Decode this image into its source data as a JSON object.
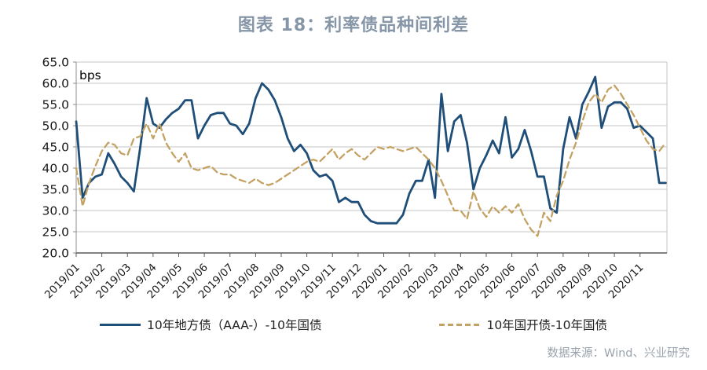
{
  "title": "图表 18：利率债品种间利差",
  "source": "数据来源：Wind、兴业研究",
  "colors": {
    "title_text": "#8696A7",
    "source_text": "#9AA3AD",
    "axis_text": "#1A1A1A",
    "gridline": "#C6C6C6",
    "axis_line": "#595959",
    "left_axis_line": "#8C8C8C"
  },
  "legend": [
    {
      "label": "10年地方债（AAA-）-10年国债",
      "style": "solid"
    },
    {
      "label": "10年国开债-10年国债",
      "style": "dashed"
    }
  ],
  "chart_data": {
    "type": "line",
    "unit_label": "bps",
    "y_axis": {
      "min": 20,
      "max": 65,
      "step": 5
    },
    "y_tick_labels": [
      "65.0",
      "60.0",
      "55.0",
      "50.0",
      "45.0",
      "40.0",
      "35.0",
      "30.0",
      "25.0",
      "20.0"
    ],
    "x_ticks": [
      "2019/01",
      "2019/02",
      "2019/03",
      "2019/04",
      "2019/05",
      "2019/06",
      "2019/07",
      "2019/08",
      "2019/09",
      "2019/10",
      "2019/11",
      "2019/12",
      "2020/01",
      "2020/02",
      "2020/03",
      "2020/04",
      "2020/05",
      "2020/06",
      "2020/07",
      "2020/08",
      "2020/09",
      "2020/10",
      "2020/11"
    ],
    "x_step_months": 0.25,
    "x_span_months": 23.05,
    "grid": true,
    "legend_position": "bottom",
    "series": [
      {
        "name": "10年地方债（AAA-）-10年国债",
        "color": "#1F4E79",
        "style": "solid",
        "values": [
          51,
          33,
          36.5,
          38,
          38.5,
          43.5,
          41,
          38,
          36.5,
          34.5,
          45,
          56.5,
          50.5,
          49.5,
          51.5,
          53,
          54,
          56,
          56,
          47,
          50,
          52.5,
          53,
          53,
          50.5,
          50,
          48,
          50.5,
          56.5,
          60,
          58.5,
          56,
          52,
          47,
          44,
          45.5,
          43.5,
          39.5,
          38,
          38.5,
          37,
          32,
          33,
          32,
          32,
          29,
          27.5,
          27,
          27,
          27,
          27,
          29,
          34,
          37,
          37,
          42,
          33,
          57.5,
          44,
          51,
          52.5,
          46,
          35,
          40,
          43,
          46.5,
          43.5,
          52,
          42.5,
          44.5,
          49,
          44,
          38,
          38,
          30.5,
          29.5,
          44.5,
          52,
          47,
          55,
          58,
          61.5,
          49.5,
          54.5,
          55.5,
          55.5,
          54,
          49.5,
          50,
          48.5,
          47,
          36.5,
          36.5
        ]
      },
      {
        "name": "10年国开债-10年国债",
        "color": "#C3A263",
        "style": "dashed",
        "values": [
          40,
          31,
          36.5,
          40.5,
          44,
          46,
          45.5,
          43.5,
          43,
          47,
          47.5,
          50.5,
          47,
          50.5,
          46,
          43.5,
          41.5,
          43.5,
          40,
          39.5,
          40,
          40.5,
          39,
          38.5,
          38.5,
          37.5,
          37,
          36.5,
          37.5,
          36.5,
          36,
          36.5,
          37.5,
          38.5,
          39.5,
          40.5,
          41.5,
          42,
          41.5,
          43,
          44.5,
          42,
          43.5,
          44.5,
          43,
          42,
          43.5,
          45,
          44.5,
          45,
          44.5,
          44,
          44.5,
          45,
          43.5,
          42,
          40,
          37,
          33.5,
          30,
          30,
          28,
          34.5,
          30.5,
          28.5,
          31,
          29.5,
          31,
          29.5,
          31.5,
          28,
          25.5,
          24,
          29.5,
          27.5,
          33.5,
          37,
          42,
          46,
          51,
          55.5,
          57.5,
          55.5,
          58.5,
          59.5,
          57.5,
          55,
          52.5,
          49.5,
          46.5,
          44.5,
          44,
          46
        ]
      }
    ]
  }
}
